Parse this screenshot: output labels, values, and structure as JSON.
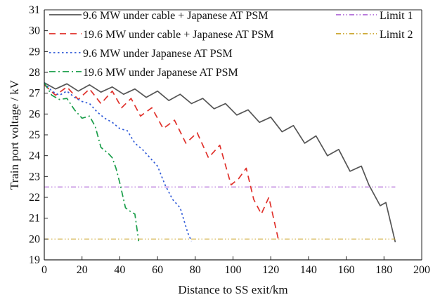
{
  "chart_data": {
    "type": "line",
    "xlabel": "Distance to SS exit/km",
    "ylabel": "Train port voltage / kV",
    "xlim": [
      0,
      200
    ],
    "ylim": [
      19,
      31
    ],
    "xticks": [
      0,
      20,
      40,
      60,
      80,
      100,
      120,
      140,
      160,
      180,
      200
    ],
    "yticks": [
      19,
      20,
      21,
      22,
      23,
      24,
      25,
      26,
      27,
      28,
      29,
      30,
      31
    ],
    "grid": false,
    "legend": "top",
    "series": [
      {
        "name": "9.6 MW under cable + Japanese AT PSM",
        "color": "#555555",
        "style": "solid",
        "points": [
          [
            0,
            27.5
          ],
          [
            6,
            27.2
          ],
          [
            12,
            27.45
          ],
          [
            18,
            27.1
          ],
          [
            24,
            27.4
          ],
          [
            30,
            27.05
          ],
          [
            36,
            27.3
          ],
          [
            42,
            26.95
          ],
          [
            48,
            27.2
          ],
          [
            54,
            26.8
          ],
          [
            60,
            27.1
          ],
          [
            66,
            26.65
          ],
          [
            72,
            26.95
          ],
          [
            78,
            26.5
          ],
          [
            84,
            26.75
          ],
          [
            90,
            26.25
          ],
          [
            96,
            26.5
          ],
          [
            102,
            25.95
          ],
          [
            108,
            26.2
          ],
          [
            114,
            25.6
          ],
          [
            120,
            25.85
          ],
          [
            126,
            25.15
          ],
          [
            132,
            25.45
          ],
          [
            138,
            24.6
          ],
          [
            144,
            24.95
          ],
          [
            150,
            24.0
          ],
          [
            156,
            24.3
          ],
          [
            162,
            23.25
          ],
          [
            168,
            23.5
          ],
          [
            172,
            22.6
          ],
          [
            178,
            21.6
          ],
          [
            181,
            21.75
          ],
          [
            186,
            19.85
          ]
        ]
      },
      {
        "name": "19.6 MW under cable + Japanese AT PSM",
        "color": "#e0312b",
        "style": "dashed",
        "points": [
          [
            0,
            27.4
          ],
          [
            6,
            26.9
          ],
          [
            12,
            27.3
          ],
          [
            18,
            26.7
          ],
          [
            24,
            27.2
          ],
          [
            30,
            26.5
          ],
          [
            36,
            27.1
          ],
          [
            41,
            26.3
          ],
          [
            46,
            26.75
          ],
          [
            51,
            25.9
          ],
          [
            57,
            26.3
          ],
          [
            63,
            25.3
          ],
          [
            69,
            25.7
          ],
          [
            75,
            24.6
          ],
          [
            81,
            25.1
          ],
          [
            87,
            23.9
          ],
          [
            93,
            24.5
          ],
          [
            99,
            22.6
          ],
          [
            103,
            22.9
          ],
          [
            107,
            23.4
          ],
          [
            111,
            21.9
          ],
          [
            115,
            21.2
          ],
          [
            119,
            22.0
          ],
          [
            124,
            20.0
          ]
        ]
      },
      {
        "name": "9.6 MW under Japanese AT PSM",
        "color": "#2f5ad8",
        "style": "dotted",
        "points": [
          [
            0,
            27.5
          ],
          [
            4,
            27.1
          ],
          [
            8,
            26.9
          ],
          [
            12,
            27.1
          ],
          [
            16,
            26.8
          ],
          [
            20,
            26.6
          ],
          [
            24,
            26.5
          ],
          [
            28,
            26.1
          ],
          [
            32,
            25.8
          ],
          [
            36,
            25.6
          ],
          [
            40,
            25.3
          ],
          [
            44,
            25.2
          ],
          [
            48,
            24.6
          ],
          [
            52,
            24.3
          ],
          [
            56,
            23.9
          ],
          [
            60,
            23.5
          ],
          [
            64,
            22.6
          ],
          [
            68,
            21.9
          ],
          [
            72,
            21.5
          ],
          [
            76,
            20.3
          ],
          [
            78,
            19.9
          ]
        ]
      },
      {
        "name": "19.6 MW under Japanese AT PSM",
        "color": "#1a9e4a",
        "style": "dashdot",
        "points": [
          [
            0,
            27.5
          ],
          [
            4,
            26.9
          ],
          [
            8,
            26.7
          ],
          [
            12,
            26.75
          ],
          [
            16,
            26.2
          ],
          [
            20,
            25.8
          ],
          [
            24,
            25.9
          ],
          [
            27,
            25.4
          ],
          [
            30,
            24.4
          ],
          [
            34,
            24.1
          ],
          [
            36,
            23.9
          ],
          [
            38,
            23.4
          ],
          [
            40,
            22.7
          ],
          [
            43,
            21.5
          ],
          [
            46,
            21.3
          ],
          [
            48,
            21.2
          ],
          [
            50,
            19.9
          ]
        ]
      },
      {
        "name": "Limit 1",
        "color": "#b06ad8",
        "style": "dashdotdot",
        "points": [
          [
            0,
            22.5
          ],
          [
            186,
            22.5
          ]
        ]
      },
      {
        "name": "Limit 2",
        "color": "#c9a227",
        "style": "dashdotdot",
        "points": [
          [
            0,
            20.0
          ],
          [
            186,
            20.0
          ]
        ]
      }
    ]
  }
}
